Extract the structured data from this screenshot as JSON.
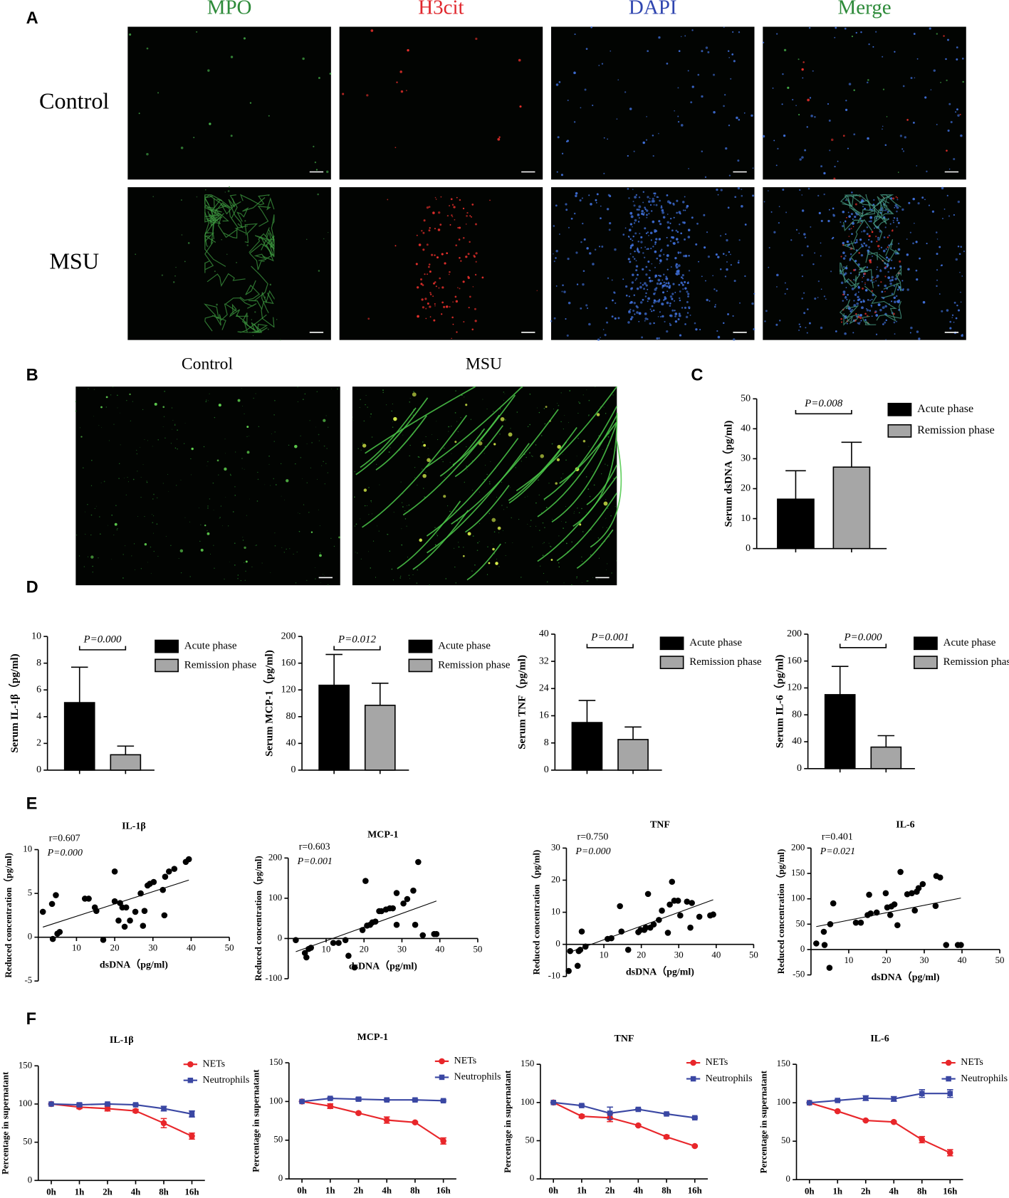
{
  "figure": {
    "panel_labels": [
      "A",
      "B",
      "C",
      "D",
      "E",
      "F"
    ],
    "panel_a": {
      "columns": [
        "MPO",
        "H3cit",
        "DAPI",
        "Merge"
      ],
      "rows": [
        "Control",
        "MSU"
      ]
    },
    "panel_b": {
      "columns": [
        "Control",
        "MSU"
      ]
    }
  },
  "chart_data": [
    {
      "type": "bar",
      "categories": [
        null
      ],
      "ylabel": "Serum dsDNA（pg/ml)",
      "annotation": "P=0.008",
      "legend": "outside right",
      "series": [
        {
          "name": "Acute phase",
          "color": "#000000",
          "values": [
            16.5
          ],
          "errors": [
            9.5
          ]
        },
        {
          "name": "Remission phase",
          "color": "#a6a6a6",
          "values": [
            27.2
          ],
          "errors": [
            8.3
          ]
        }
      ],
      "ylim": [
        0,
        50
      ],
      "yticks": [
        0,
        10,
        20,
        30,
        40,
        50
      ]
    },
    {
      "type": "bar",
      "categories": [
        null
      ],
      "ylabel": "Serum IL-1β（pg/ml)",
      "annotation": "P=0.000",
      "legend": "outside right",
      "series": [
        {
          "name": "Acute phase",
          "color": "#000000",
          "values": [
            5.05
          ],
          "errors": [
            2.65
          ]
        },
        {
          "name": "Remission phase",
          "color": "#a6a6a6",
          "values": [
            1.15
          ],
          "errors": [
            0.65
          ]
        }
      ],
      "ylim": [
        0,
        10
      ],
      "yticks": [
        0,
        2,
        4,
        6,
        8,
        10
      ]
    },
    {
      "type": "bar",
      "categories": [
        null
      ],
      "ylabel": "Serum MCP-1（pg/ml)",
      "annotation": "P=0.012",
      "legend": "outside right",
      "series": [
        {
          "name": "Acute phase",
          "color": "#000000",
          "values": [
            127
          ],
          "errors": [
            46
          ]
        },
        {
          "name": "Remission phase",
          "color": "#a6a6a6",
          "values": [
            97
          ],
          "errors": [
            33
          ]
        }
      ],
      "ylim": [
        0,
        200
      ],
      "yticks": [
        0,
        40,
        80,
        120,
        160,
        200
      ]
    },
    {
      "type": "bar",
      "categories": [
        null
      ],
      "ylabel": "Serum TNF（pg/ml)",
      "annotation": "P=0.001",
      "legend": "outside right",
      "series": [
        {
          "name": "Acute phase",
          "color": "#000000",
          "values": [
            14
          ],
          "errors": [
            6.5
          ]
        },
        {
          "name": "Remission phase",
          "color": "#a6a6a6",
          "values": [
            9
          ],
          "errors": [
            3.7
          ]
        }
      ],
      "ylim": [
        0,
        40
      ],
      "yticks": [
        0,
        8,
        16,
        24,
        32,
        40
      ]
    },
    {
      "type": "bar",
      "categories": [
        null
      ],
      "ylabel": "Serum IL-6（pg/ml)",
      "annotation": "P=0.000",
      "legend": "outside right",
      "series": [
        {
          "name": "Acute phase",
          "color": "#000000",
          "values": [
            110
          ],
          "errors": [
            42
          ]
        },
        {
          "name": "Remission phase",
          "color": "#a6a6a6",
          "values": [
            32
          ],
          "errors": [
            17
          ]
        }
      ],
      "ylim": [
        0,
        200
      ],
      "yticks": [
        0,
        40,
        80,
        120,
        160,
        200
      ]
    },
    {
      "type": "scatter",
      "title": "IL-1β",
      "annotations": [
        "r=0.607",
        "P=0.000"
      ],
      "xlabel": "dsDNA（pg/ml)",
      "ylabel": "Reduced concentration（pg/ml)",
      "color": "#000000",
      "trendline": true,
      "x": [
        1.2,
        3.6,
        4.6,
        3.8,
        5,
        5.6,
        12.2,
        13.2,
        14.8,
        15.2,
        17,
        20,
        20,
        21,
        21.4,
        22,
        22.6,
        23,
        24,
        25.4,
        26.8,
        27.4,
        27.8,
        28.6,
        29.2,
        30.2,
        32.6,
        33,
        33.2,
        34.2,
        35.6,
        38.6,
        39.4
      ],
      "y": [
        2.9,
        3.8,
        4.8,
        -0.2,
        0.4,
        0.6,
        4.4,
        4.4,
        3.4,
        3,
        -0.3,
        4.1,
        7.5,
        1.9,
        3.9,
        3.4,
        1.2,
        3.4,
        1.9,
        2.9,
        5,
        1.3,
        3,
        5.9,
        6.1,
        6.3,
        5.4,
        2.5,
        6.9,
        7.5,
        7.8,
        8.6,
        8.9
      ],
      "xlim": [
        0,
        50
      ],
      "xticks": [
        10,
        20,
        30,
        40,
        50
      ],
      "ylim": [
        -5,
        10
      ],
      "yticks": [
        -5,
        0,
        5,
        10
      ]
    },
    {
      "type": "scatter",
      "title": "MCP-1",
      "annotations": [
        "r=0.603",
        "P=0.001"
      ],
      "xlabel": "dsDNA（pg/ml)",
      "ylabel": "Reduced concentration（pg/ml)",
      "color": "#000000",
      "trendline": true,
      "x": [
        2,
        4.4,
        4.8,
        5.4,
        6,
        11.9,
        13.3,
        15.1,
        15.9,
        17.5,
        19.6,
        20.4,
        20.8,
        21.6,
        22.2,
        23,
        24,
        24.6,
        25.8,
        26.8,
        27.6,
        28.6,
        28.6,
        30.4,
        31.4,
        33,
        33.5,
        34.3,
        35.5,
        38.5,
        39.1
      ],
      "y": [
        -4,
        -36,
        -47,
        -26,
        -23,
        -11,
        -11,
        -4,
        -43,
        -72,
        21,
        143,
        32,
        34,
        40,
        42,
        68,
        68,
        72,
        75,
        75,
        34,
        113,
        87,
        98,
        119,
        34,
        190,
        8,
        11,
        11
      ],
      "xlim": [
        0,
        50
      ],
      "xticks": [
        10,
        20,
        30,
        40,
        50
      ],
      "ylim": [
        -100,
        200
      ],
      "yticks": [
        -100,
        0,
        100,
        200
      ]
    },
    {
      "type": "scatter",
      "title": "TNF",
      "annotations": [
        "r=0.750",
        "P=0.000"
      ],
      "xlabel": "dsDNA（pg/ml)",
      "ylabel": "Reduced concentration（pg/ml)",
      "color": "#000000",
      "trendline": true,
      "x": [
        0.6,
        1,
        3,
        3.3,
        3.7,
        4.1,
        5.1,
        11,
        12,
        14.3,
        14.7,
        16.5,
        19.2,
        19.8,
        20.8,
        21.2,
        21.8,
        22.4,
        23.3,
        24.7,
        25.5,
        27.1,
        27.6,
        28.2,
        28.8,
        29.8,
        30.4,
        32.2,
        33.1,
        33.5,
        35.5,
        38.4,
        39.2
      ],
      "y": [
        -8.3,
        -2.1,
        -6.7,
        -2.1,
        -1.7,
        4,
        -0.7,
        1.7,
        1.9,
        11.9,
        4,
        -1.7,
        3.8,
        4.5,
        4.5,
        5.2,
        15.7,
        5.2,
        6.2,
        7.6,
        10.5,
        3.6,
        12.4,
        19.5,
        13.6,
        13.6,
        9,
        13.3,
        5.2,
        12.9,
        8.6,
        9,
        9.3
      ],
      "xlim": [
        0,
        50
      ],
      "xticks": [
        10,
        20,
        30,
        40,
        50
      ],
      "ylim": [
        -10,
        30
      ],
      "yticks": [
        -10,
        0,
        10,
        20,
        30
      ]
    },
    {
      "type": "scatter",
      "title": "IL-6",
      "annotations": [
        "r=0.401",
        "P=0.021"
      ],
      "xlabel": "dsDNA（pg/ml)",
      "ylabel": "Reduced concentration（pg/ml)",
      "color": "#000000",
      "trendline": true,
      "x": [
        1.4,
        3.4,
        3.6,
        4.9,
        5.1,
        5.9,
        11.9,
        13.2,
        15,
        15.4,
        15.8,
        17.4,
        19.8,
        20.2,
        21,
        21.3,
        22.1,
        22.9,
        23.7,
        25.5,
        26.7,
        27.5,
        28,
        28.5,
        29.6,
        33,
        33.2,
        34.2,
        35.8,
        38.9,
        39.7
      ],
      "y": [
        12,
        35,
        9,
        -36,
        50,
        91,
        53,
        53,
        68,
        108,
        71,
        73,
        111,
        83,
        68,
        85,
        89,
        48,
        153,
        109,
        111,
        77,
        114,
        121,
        129,
        86,
        145,
        142,
        9,
        9,
        9
      ],
      "xlim": [
        0,
        50
      ],
      "xticks": [
        10,
        20,
        30,
        40,
        50
      ],
      "ylim": [
        -50,
        200
      ],
      "yticks": [
        -50,
        0,
        50,
        100,
        150,
        200
      ]
    },
    {
      "type": "line",
      "title": "IL-1β",
      "ylabel": "Percentage in supernatant",
      "legend": "upper right",
      "categories": [
        "0h",
        "1h",
        "2h",
        "4h",
        "8h",
        "16h"
      ],
      "series": [
        {
          "name": "NETs",
          "color": "#e8262a",
          "values": [
            100,
            96,
            94,
            91,
            75,
            58
          ],
          "errors": [
            0,
            2,
            3,
            2,
            6,
            4
          ]
        },
        {
          "name": "Neutrophils",
          "color": "#3a47a3",
          "values": [
            100,
            99,
            100,
            99,
            94,
            87
          ],
          "errors": [
            0,
            2,
            1,
            1,
            3,
            4
          ]
        }
      ],
      "ylim": [
        0,
        150
      ],
      "yticks": [
        0,
        50,
        100,
        150
      ]
    },
    {
      "type": "line",
      "title": "MCP-1",
      "ylabel": "Percentage in supernatant",
      "legend": "upper right",
      "categories": [
        "0h",
        "1h",
        "2h",
        "4h",
        "8h",
        "16h"
      ],
      "series": [
        {
          "name": "NETs",
          "color": "#e8262a",
          "values": [
            100,
            94,
            85,
            76,
            73,
            49
          ],
          "errors": [
            0,
            3,
            1,
            4,
            1,
            4
          ]
        },
        {
          "name": "Neutrophils",
          "color": "#3a47a3",
          "values": [
            100,
            104,
            103,
            102,
            102,
            101
          ],
          "errors": [
            0,
            1,
            2,
            1,
            1,
            1
          ]
        }
      ],
      "ylim": [
        0,
        150
      ],
      "yticks": [
        0,
        50,
        100,
        150
      ]
    },
    {
      "type": "line",
      "title": "TNF",
      "ylabel": "Percentage in supernatant",
      "legend": "upper right",
      "categories": [
        "0h",
        "1h",
        "2h",
        "4h",
        "8h",
        "16h"
      ],
      "series": [
        {
          "name": "NETs",
          "color": "#e8262a",
          "values": [
            100,
            82,
            80,
            70,
            55,
            43
          ],
          "errors": [
            0,
            2,
            5,
            1,
            2,
            1
          ]
        },
        {
          "name": "Neutrophils",
          "color": "#3a47a3",
          "values": [
            100,
            96,
            86,
            91,
            85,
            80
          ],
          "errors": [
            0,
            1,
            8,
            1,
            1,
            1
          ]
        }
      ],
      "ylim": [
        0,
        150
      ],
      "yticks": [
        0,
        50,
        100,
        150
      ]
    },
    {
      "type": "line",
      "title": "IL-6",
      "ylabel": "Percentage in supernatant",
      "legend": "upper right",
      "categories": [
        "0h",
        "1h",
        "2h",
        "4h",
        "8h",
        "16h"
      ],
      "series": [
        {
          "name": "NETs",
          "color": "#e8262a",
          "values": [
            100,
            89,
            77,
            75,
            52,
            35
          ],
          "errors": [
            0,
            1,
            1,
            1,
            4,
            4
          ]
        },
        {
          "name": "Neutrophils",
          "color": "#3a47a3",
          "values": [
            100,
            103,
            106,
            105,
            112,
            112
          ],
          "errors": [
            0,
            1,
            3,
            3,
            5,
            5
          ]
        }
      ],
      "ylim": [
        0,
        150
      ],
      "yticks": [
        0,
        50,
        100,
        150
      ]
    }
  ]
}
